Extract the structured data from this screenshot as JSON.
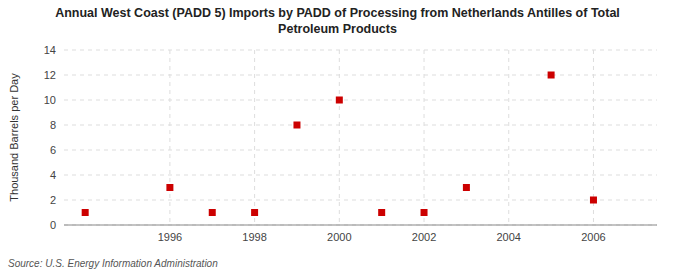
{
  "chart_data": {
    "type": "scatter",
    "title": "Annual West Coast (PADD 5) Imports by PADD of Processing from Netherlands Antilles of Total",
    "subtitle": "Petroleum Products",
    "ylabel": "Thousand Barrels per Day",
    "annotations": [
      "Source: U.S. Energy Information Administration"
    ],
    "x": [
      1994,
      1996,
      1997,
      1998,
      1999,
      2000,
      2001,
      2002,
      2003,
      2005,
      2006
    ],
    "values": [
      1,
      3,
      1,
      1,
      8,
      10,
      1,
      1,
      3,
      12,
      2
    ],
    "color": "#cc0000",
    "marker": "square",
    "xlim": [
      1993.5,
      2007.5
    ],
    "ylim": [
      0,
      14
    ],
    "xticks": [
      1996,
      1998,
      2000,
      2002,
      2004,
      2006
    ],
    "yticks": [
      0,
      2,
      4,
      6,
      8,
      10,
      12,
      14
    ],
    "grid": true
  }
}
